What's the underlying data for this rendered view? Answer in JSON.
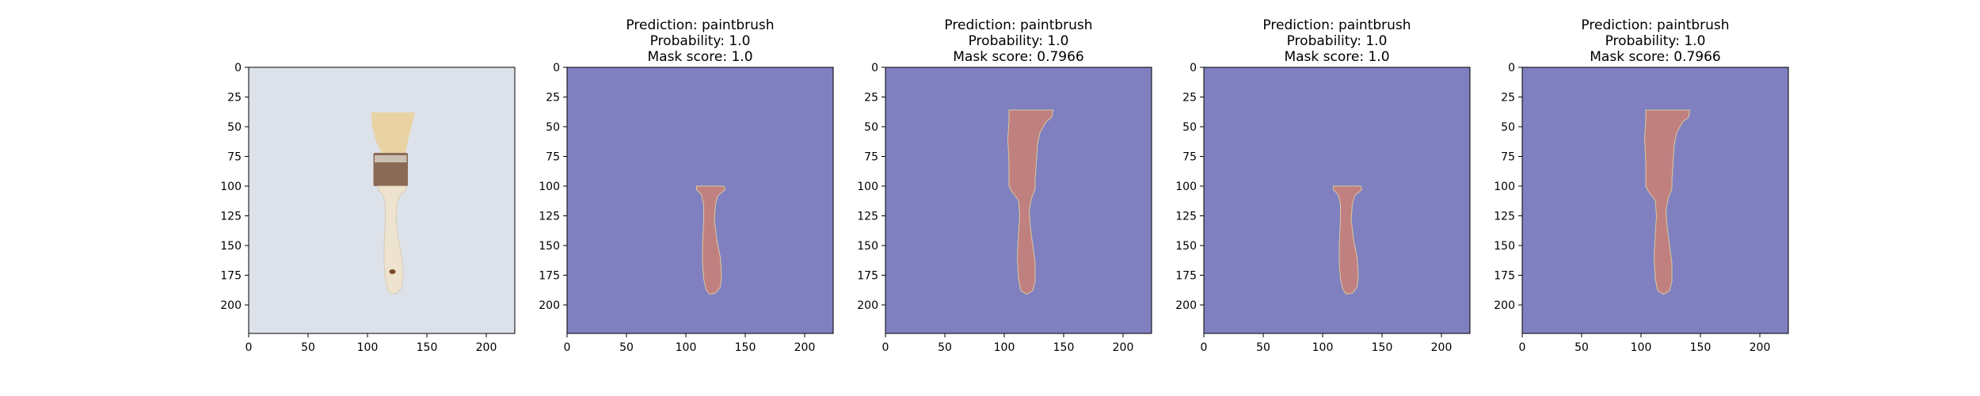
{
  "colors": {
    "mask_background": "#8080c0",
    "mask_foreground": "#c08080",
    "photo_background": "#dde2ea",
    "brush_handle": "#ede3cf",
    "brush_bristles": "#e9d3a4",
    "brush_ferrule": "#8a6a55"
  },
  "chart_data": [
    {
      "type": "image",
      "content": "photo",
      "title_lines": [],
      "xlim": [
        0,
        224
      ],
      "ylim": [
        224,
        0
      ],
      "xticks": [
        0,
        50,
        100,
        150,
        200
      ],
      "yticks": [
        0,
        25,
        50,
        75,
        100,
        125,
        150,
        175,
        200
      ]
    },
    {
      "type": "image",
      "content": "mask",
      "mask_shape": "handle",
      "title_lines": [
        "Prediction: paintbrush",
        "Probability: 1.0",
        "Mask score: 1.0"
      ],
      "xlim": [
        0,
        224
      ],
      "ylim": [
        224,
        0
      ],
      "xticks": [
        0,
        50,
        100,
        150,
        200
      ],
      "yticks": [
        0,
        25,
        50,
        75,
        100,
        125,
        150,
        175,
        200
      ]
    },
    {
      "type": "image",
      "content": "mask",
      "mask_shape": "full",
      "title_lines": [
        "Prediction: paintbrush",
        "Probability: 1.0",
        "Mask score: 0.7966"
      ],
      "xlim": [
        0,
        224
      ],
      "ylim": [
        224,
        0
      ],
      "xticks": [
        0,
        50,
        100,
        150,
        200
      ],
      "yticks": [
        0,
        25,
        50,
        75,
        100,
        125,
        150,
        175,
        200
      ]
    },
    {
      "type": "image",
      "content": "mask",
      "mask_shape": "handle",
      "title_lines": [
        "Prediction: paintbrush",
        "Probability: 1.0",
        "Mask score: 1.0"
      ],
      "xlim": [
        0,
        224
      ],
      "ylim": [
        224,
        0
      ],
      "xticks": [
        0,
        50,
        100,
        150,
        200
      ],
      "yticks": [
        0,
        25,
        50,
        75,
        100,
        125,
        150,
        175,
        200
      ]
    },
    {
      "type": "image",
      "content": "mask",
      "mask_shape": "full",
      "title_lines": [
        "Prediction: paintbrush",
        "Probability: 1.0",
        "Mask score: 0.7966"
      ],
      "xlim": [
        0,
        224
      ],
      "ylim": [
        224,
        0
      ],
      "xticks": [
        0,
        50,
        100,
        150,
        200
      ],
      "yticks": [
        0,
        25,
        50,
        75,
        100,
        125,
        150,
        175,
        200
      ]
    }
  ]
}
